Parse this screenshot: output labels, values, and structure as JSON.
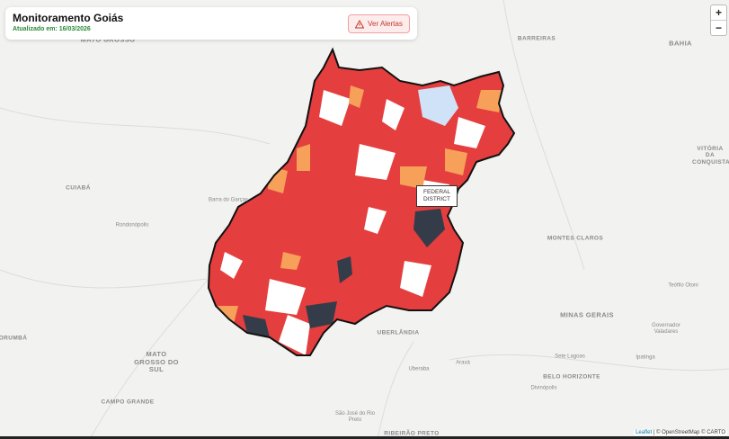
{
  "header": {
    "title": "Monitoramento Goiás",
    "updated": "Atualizado em: 16/03/2026",
    "button": "Ver Alertas"
  },
  "zoom": {
    "in": "+",
    "out": "−"
  },
  "map_labels": [
    "MATO GROSSO",
    "BARREIRAS",
    "BAHIA",
    "CUIABÁ",
    "Barra do Garças",
    "Rondonópolis",
    "MONTES CLAROS",
    "VITÓRIA DA CONQUISTA",
    "Teófilo Otoni",
    "MINAS GERAIS",
    "Governador Valadares",
    "CORUMBÁ",
    "UBERLÂNDIA",
    "MATO GROSSO DO SUL",
    "Uberaba",
    "Araxá",
    "Sete Lagoas",
    "BELO HORIZONTE",
    "Ipatinga",
    "Divinópolis",
    "CAMPO GRANDE",
    "São José do Rio Preto",
    "RIBEIRÃO PRETO"
  ],
  "federal_district": "FEDERAL DISTRICT",
  "attribution": {
    "leaflet": "Leaflet",
    "rest": "| © OpenStreetMap © CARTO"
  }
}
